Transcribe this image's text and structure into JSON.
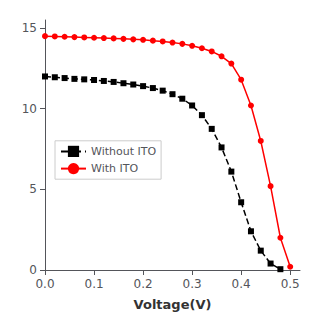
{
  "chart_data": {
    "type": "line",
    "title": "",
    "xlabel": "Voltage(V)",
    "xlim": [
      0.0,
      0.52
    ],
    "ylim": [
      0,
      15.5
    ],
    "xticks": [
      {
        "value": 0.0,
        "label": "0.0"
      },
      0.1,
      0.2,
      0.3,
      0.4,
      0.5
    ],
    "yticks": [
      0,
      5,
      10,
      15
    ],
    "grid": false,
    "legend": "center left",
    "series": [
      {
        "name": "Without ITO",
        "color": "black",
        "marker": "square",
        "line_style": "dashed",
        "x": [
          0.0,
          0.02,
          0.04,
          0.06,
          0.08,
          0.1,
          0.12,
          0.14,
          0.16,
          0.18,
          0.2,
          0.22,
          0.24,
          0.26,
          0.28,
          0.3,
          0.32,
          0.34,
          0.36,
          0.38,
          0.4,
          0.42,
          0.44,
          0.46,
          0.48
        ],
        "values": [
          12.0,
          11.95,
          11.9,
          11.85,
          11.82,
          11.78,
          11.72,
          11.66,
          11.58,
          11.5,
          11.4,
          11.28,
          11.12,
          10.9,
          10.62,
          10.2,
          9.6,
          8.75,
          7.6,
          6.1,
          4.2,
          2.4,
          1.2,
          0.4,
          0.05
        ]
      },
      {
        "name": "With ITO",
        "color": "red",
        "marker": "circle",
        "line_style": "solid",
        "x": [
          0.0,
          0.02,
          0.04,
          0.06,
          0.08,
          0.1,
          0.12,
          0.14,
          0.16,
          0.18,
          0.2,
          0.22,
          0.24,
          0.26,
          0.28,
          0.3,
          0.32,
          0.34,
          0.36,
          0.38,
          0.4,
          0.42,
          0.44,
          0.46,
          0.48,
          0.5
        ],
        "values": [
          14.5,
          14.48,
          14.46,
          14.44,
          14.42,
          14.4,
          14.38,
          14.36,
          14.33,
          14.3,
          14.27,
          14.22,
          14.17,
          14.1,
          14.02,
          13.9,
          13.75,
          13.55,
          13.25,
          12.8,
          11.8,
          10.2,
          8.0,
          5.2,
          2.0,
          0.2
        ]
      }
    ]
  }
}
